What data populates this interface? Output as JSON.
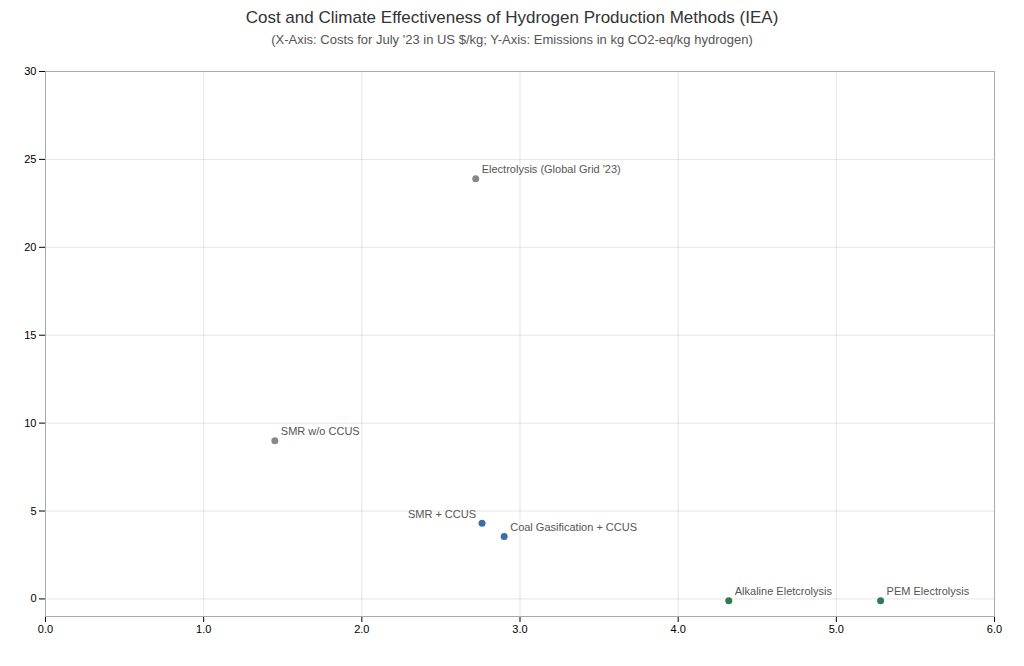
{
  "chart_data": {
    "type": "scatter",
    "title": "Cost and Climate Effectiveness of Hydrogen Production Methods (IEA)",
    "subtitle": "(X-Axis: Costs  for July '23 in US $/kg; Y-Axis: Emissions in kg CO2-eq/kg hydrogen)",
    "points": [
      {
        "label": "Electrolysis (Global Grid '23)",
        "x": 2.72,
        "y": 23.9,
        "color": "#888888"
      },
      {
        "label": "SMR w/o CCUS",
        "x": 1.45,
        "y": 9.0,
        "color": "#888888"
      },
      {
        "label": "Coal Gasification + CCUS",
        "x": 2.9,
        "y": 3.55,
        "color": "#3a6ea5"
      },
      {
        "label": "SMR + CCUS",
        "x": 2.76,
        "y": 4.3,
        "color": "#3a6ea5"
      },
      {
        "label": "Alkaline Eletcrolysis",
        "x": 4.32,
        "y": -0.1,
        "color": "#2e7d52"
      },
      {
        "label": "PEM Electrolysis",
        "x": 5.28,
        "y": -0.1,
        "color": "#2e7d52"
      }
    ],
    "xlim": [
      0,
      6
    ],
    "ylim": [
      -1,
      30
    ],
    "xticks": [
      0,
      1,
      2,
      3,
      4,
      5,
      6
    ],
    "yticks": [
      0,
      5,
      10,
      15,
      20,
      25,
      30
    ],
    "grid": true
  }
}
